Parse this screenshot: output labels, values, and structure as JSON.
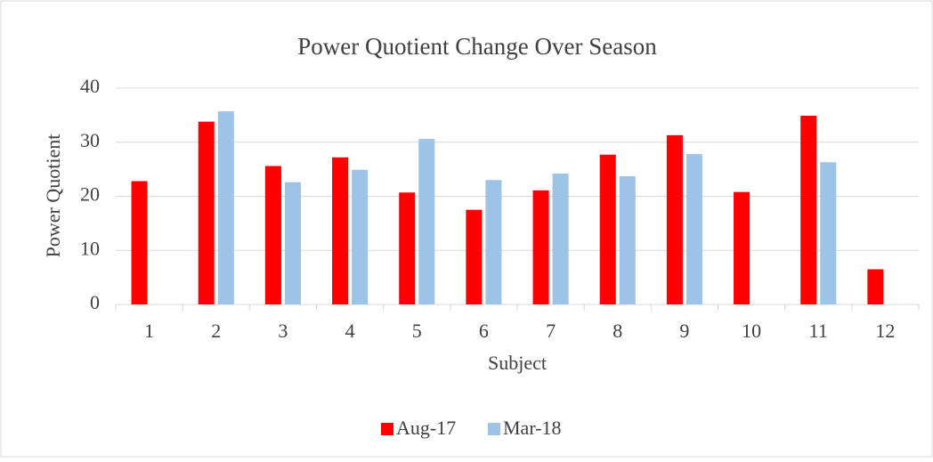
{
  "chart_data": {
    "type": "bar",
    "title": "Power Quotient Change Over Season",
    "x_label": "Subject",
    "y_label": "Power Quotient",
    "categories": [
      "1",
      "2",
      "3",
      "4",
      "5",
      "6",
      "7",
      "8",
      "9",
      "10",
      "11",
      "12"
    ],
    "series": [
      {
        "name": "Aug-17",
        "color": "#ff0000",
        "values": [
          22.8,
          33.8,
          25.6,
          27.2,
          20.7,
          17.5,
          21.1,
          27.7,
          31.3,
          20.8,
          34.9,
          6.5
        ]
      },
      {
        "name": "Mar-18",
        "color": "#9dc3e6",
        "values": [
          null,
          35.7,
          22.6,
          24.9,
          30.6,
          23.0,
          24.2,
          23.7,
          27.8,
          null,
          26.3,
          null
        ]
      }
    ],
    "ylim": [
      0,
      40
    ],
    "yticks": [
      0,
      10,
      20,
      30,
      40
    ],
    "grid": true,
    "legend": "bottom"
  }
}
